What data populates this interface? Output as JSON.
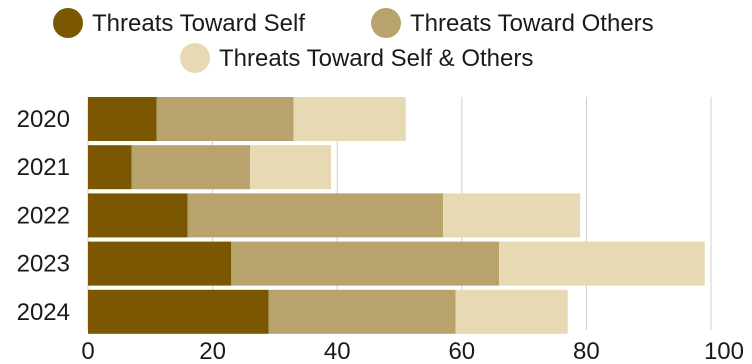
{
  "chart_data": {
    "type": "bar",
    "orientation": "horizontal",
    "stacked": true,
    "title": "",
    "xlabel": "",
    "ylabel": "",
    "categories": [
      "2020",
      "2021",
      "2022",
      "2023",
      "2024"
    ],
    "series": [
      {
        "name": "Threats Toward Self",
        "color": "#7a5700",
        "values": [
          11,
          7,
          16,
          23,
          29
        ]
      },
      {
        "name": "Threats Toward Others",
        "color": "#b9a36c",
        "values": [
          22,
          19,
          41,
          43,
          30
        ]
      },
      {
        "name": "Threats Toward Self & Others",
        "color": "#e8d9b5",
        "values": [
          18,
          13,
          22,
          33,
          18
        ]
      }
    ],
    "xlim": [
      0,
      100
    ],
    "xticks": [
      "0",
      "20",
      "40",
      "60",
      "80",
      "100"
    ],
    "grid": "vertical",
    "legend_position": "top"
  }
}
